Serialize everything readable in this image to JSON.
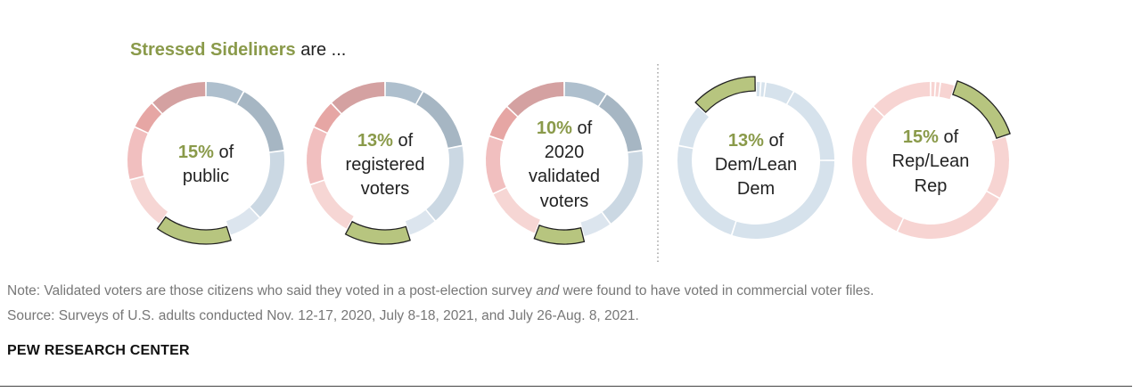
{
  "heading": {
    "highlight": "Stressed Sideliners",
    "rest": " are ..."
  },
  "chart_data": [
    {
      "type": "pie",
      "title": "",
      "highlight_pct": "15%",
      "label_lines": [
        "of",
        "public"
      ],
      "segments": [
        {
          "value": 8,
          "color": "#aebfcd"
        },
        {
          "value": 15,
          "color": "#a6b6c3"
        },
        {
          "value": 15,
          "color": "#cbd8e3"
        },
        {
          "value": 7,
          "color": "#dce5ee"
        },
        {
          "value": 15,
          "color": "#b7c57f",
          "highlight": true
        },
        {
          "value": 11,
          "color": "#f6d6d4"
        },
        {
          "value": 11,
          "color": "#f1bfbf"
        },
        {
          "value": 6,
          "color": "#e6a6a4"
        },
        {
          "value": 12,
          "color": "#d4a1a1"
        }
      ]
    },
    {
      "type": "pie",
      "title": "",
      "highlight_pct": "13%",
      "label_lines": [
        "of",
        "registered",
        "voters"
      ],
      "segments": [
        {
          "value": 8,
          "color": "#aebfcd"
        },
        {
          "value": 14,
          "color": "#a6b6c3"
        },
        {
          "value": 17,
          "color": "#cbd8e3"
        },
        {
          "value": 6,
          "color": "#dce5ee"
        },
        {
          "value": 13,
          "color": "#b7c57f",
          "highlight": true
        },
        {
          "value": 12,
          "color": "#f6d6d4"
        },
        {
          "value": 12,
          "color": "#f1bfbf"
        },
        {
          "value": 6,
          "color": "#e6a6a4"
        },
        {
          "value": 12,
          "color": "#d4a1a1"
        }
      ]
    },
    {
      "type": "pie",
      "title": "",
      "highlight_pct": "10%",
      "label_lines": [
        "of",
        "2020",
        "validated",
        "voters"
      ],
      "segments": [
        {
          "value": 9,
          "color": "#aebfcd"
        },
        {
          "value": 14,
          "color": "#a6b6c3"
        },
        {
          "value": 17,
          "color": "#cbd8e3"
        },
        {
          "value": 6,
          "color": "#dce5ee"
        },
        {
          "value": 10,
          "color": "#b7c57f",
          "highlight": true
        },
        {
          "value": 12,
          "color": "#f6d6d4"
        },
        {
          "value": 12,
          "color": "#f1bfbf"
        },
        {
          "value": 7,
          "color": "#e6a6a4"
        },
        {
          "value": 13,
          "color": "#d4a1a1"
        }
      ]
    },
    {
      "type": "pie",
      "title": "",
      "highlight_pct": "13%",
      "label_lines": [
        "of",
        "Dem/Lean",
        "Dem"
      ],
      "segments": [
        {
          "value": 1,
          "color": "#d6e2ec"
        },
        {
          "value": 1,
          "color": "#d6e2ec"
        },
        {
          "value": 6,
          "color": "#d6e2ec"
        },
        {
          "value": 17,
          "color": "#d6e2ec"
        },
        {
          "value": 30,
          "color": "#d6e2ec"
        },
        {
          "value": 23,
          "color": "#d6e2ec"
        },
        {
          "value": 9,
          "color": "#d6e2ec"
        },
        {
          "value": 13,
          "color": "#b7c57f",
          "highlight": true
        }
      ]
    },
    {
      "type": "pie",
      "title": "",
      "highlight_pct": "15%",
      "label_lines": [
        "of",
        "Rep/Lean",
        "Rep"
      ],
      "segments": [
        {
          "value": 1,
          "color": "#f7d4d2"
        },
        {
          "value": 1,
          "color": "#f7d4d2"
        },
        {
          "value": 3,
          "color": "#f7d4d2"
        },
        {
          "value": 15,
          "color": "#b7c57f",
          "highlight": true
        },
        {
          "value": 13,
          "color": "#f7d4d2"
        },
        {
          "value": 24,
          "color": "#f7d4d2"
        },
        {
          "value": 30,
          "color": "#f7d4d2"
        },
        {
          "value": 13,
          "color": "#f7d4d2"
        }
      ]
    }
  ],
  "note": "Note: Validated voters are those citizens who said they voted in a post-election survey",
  "note_italic": "and",
  "note_tail": " were found to have voted in commercial voter files.",
  "source": "Source: Surveys of U.S. adults conducted Nov. 12-17, 2020, July 8-18, 2021, and July 26-Aug. 8, 2021.",
  "brand": "PEW RESEARCH CENTER",
  "colors": {
    "highlight_text": "#8a9a4a",
    "highlight_fill": "#b7c57f"
  }
}
